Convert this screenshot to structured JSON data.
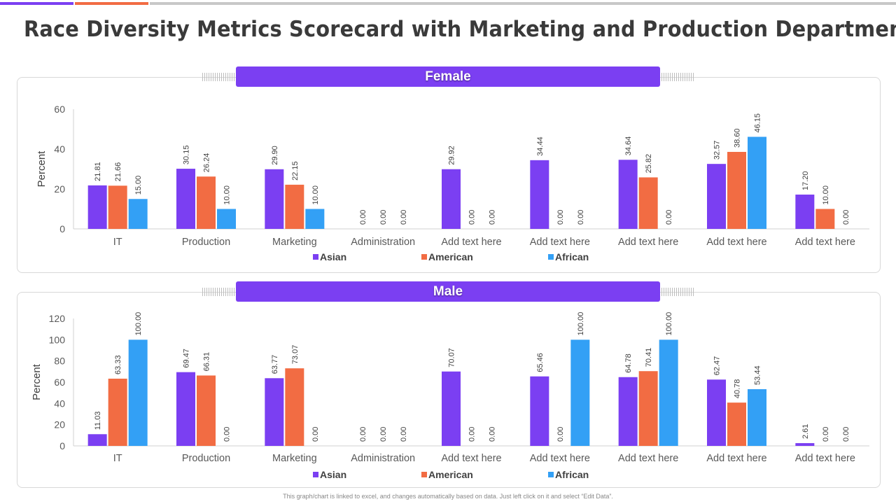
{
  "page": {
    "title": "Race Diversity Metrics Scorecard with Marketing and Production Department",
    "footnote": "This graph/chart is linked to excel, and changes automatically based on data. Just left click on it and select “Edit Data”."
  },
  "colors": {
    "accent": "#7b3ff2",
    "Asian": "#7b3ff2",
    "American": "#f26c43",
    "African": "#33a0f5"
  },
  "chart_data": [
    {
      "type": "bar",
      "title": "Female",
      "ylabel": "Percent",
      "ylim": [
        0,
        60
      ],
      "yticks": [
        0,
        20,
        40,
        60
      ],
      "legend": "bottom",
      "categories": [
        "IT",
        "Production",
        "Marketing",
        "Administration",
        "Add text here",
        "Add text here",
        "Add text here",
        "Add text here",
        "Add text here"
      ],
      "series": [
        {
          "name": "Asian",
          "values": [
            21.81,
            30.15,
            29.9,
            0.0,
            29.92,
            34.44,
            34.64,
            32.57,
            17.2
          ]
        },
        {
          "name": "American",
          "values": [
            21.66,
            26.24,
            22.15,
            0.0,
            0.0,
            0.0,
            25.82,
            38.6,
            10.0
          ]
        },
        {
          "name": "African",
          "values": [
            15.0,
            10.0,
            10.0,
            0.0,
            0.0,
            0.0,
            0.0,
            46.15,
            0.0
          ]
        }
      ]
    },
    {
      "type": "bar",
      "title": "Male",
      "ylabel": "Percent",
      "ylim": [
        0,
        120
      ],
      "yticks": [
        0,
        20,
        40,
        60,
        80,
        100,
        120
      ],
      "legend": "bottom",
      "categories": [
        "IT",
        "Production",
        "Marketing",
        "Administration",
        "Add text here",
        "Add text here",
        "Add text here",
        "Add text here",
        "Add text here"
      ],
      "series": [
        {
          "name": "Asian",
          "values": [
            11.03,
            69.47,
            63.77,
            0.0,
            70.07,
            65.46,
            64.78,
            62.47,
            2.61
          ]
        },
        {
          "name": "American",
          "values": [
            63.33,
            66.31,
            73.07,
            0.0,
            0.0,
            0.0,
            70.41,
            40.78,
            0.0
          ]
        },
        {
          "name": "African",
          "values": [
            100.0,
            0.0,
            0.0,
            0.0,
            0.0,
            100.0,
            100.0,
            53.44,
            0.0
          ]
        }
      ]
    }
  ]
}
